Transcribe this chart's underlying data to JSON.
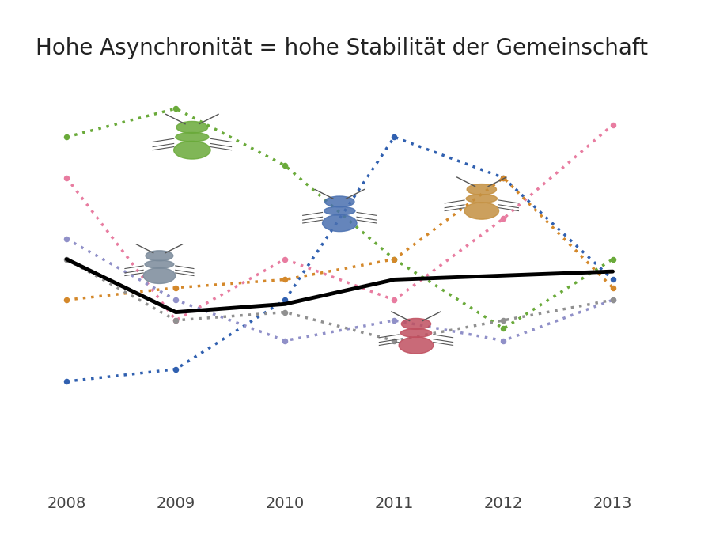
{
  "title": "Hohe Asynchronität = hohe Stabilität der Gemeinschaft",
  "title_fontsize": 20,
  "years": [
    2008,
    2009,
    2010,
    2011,
    2012,
    2013
  ],
  "xlim": [
    2007.5,
    2013.8
  ],
  "ylim": [
    0,
    10
  ],
  "background_color": "#ffffff",
  "lines": {
    "green": {
      "color": "#6aaa3a",
      "y": [
        8.5,
        9.2,
        7.8,
        5.5,
        3.8,
        5.5
      ]
    },
    "pink": {
      "color": "#e87ca0",
      "y": [
        7.5,
        4.0,
        5.5,
        4.5,
        6.5,
        8.8
      ]
    },
    "blue": {
      "color": "#3060b0",
      "y": [
        2.5,
        2.8,
        4.5,
        8.5,
        7.5,
        5.0
      ]
    },
    "orange": {
      "color": "#d4882a",
      "y": [
        4.5,
        4.8,
        5.0,
        5.5,
        7.5,
        4.8
      ]
    },
    "lavender": {
      "color": "#9090c8",
      "y": [
        6.0,
        4.5,
        3.5,
        4.0,
        3.5,
        4.5
      ]
    },
    "gray": {
      "color": "#909090",
      "y": [
        5.5,
        4.0,
        4.2,
        3.5,
        4.0,
        4.5
      ]
    }
  },
  "community_line": {
    "color": "#000000",
    "y": [
      5.5,
      4.2,
      4.4,
      5.0,
      5.1,
      5.2
    ],
    "linewidth": 3.5
  },
  "dot_size": 8
}
